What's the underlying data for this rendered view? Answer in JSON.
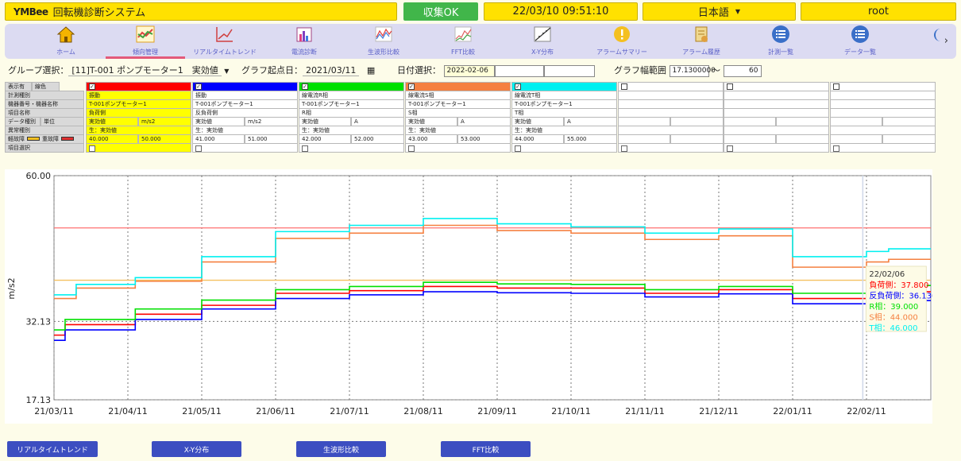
{
  "header": {
    "logo": "YMBee",
    "app_title": "回転機診断システム",
    "status": "収集OK",
    "datetime": "22/03/10 09:51:10",
    "language": "日本語",
    "user": "root"
  },
  "nav": [
    {
      "label": "ホーム",
      "icon": "home-icon"
    },
    {
      "label": "傾向管理",
      "icon": "trend-icon"
    },
    {
      "label": "リアルタイムトレンド",
      "icon": "realtime-trend-icon"
    },
    {
      "label": "電流診断",
      "icon": "current-diagnosis-icon"
    },
    {
      "label": "生波形比較",
      "icon": "raw-wave-icon"
    },
    {
      "label": "FFT比較",
      "icon": "fft-icon"
    },
    {
      "label": "X-Y分布",
      "icon": "xy-icon"
    },
    {
      "label": "アラームサマリー",
      "icon": "alarm-summary-icon"
    },
    {
      "label": "アラーム履歴",
      "icon": "alarm-history-icon"
    },
    {
      "label": "計測一覧",
      "icon": "measure-list-icon"
    },
    {
      "label": "データ一覧",
      "icon": "data-list-icon"
    }
  ],
  "controls": {
    "group_label": "グループ選択：",
    "group_value": "[11]T-001 ポンプモーター1　実効値",
    "start_label": "グラフ起点日：",
    "start_value": "2021/03/11",
    "date_label": "日付選択：",
    "date_value": "2022-02-06",
    "range_label": "グラフ幅範囲",
    "range_min": "17.1300000",
    "range_sep": "～",
    "range_max": "60"
  },
  "grid": {
    "headers": {
      "display": "表示有",
      "color": "線色",
      "meas_type": "計測種別",
      "device": "機器番号・機器名称",
      "item": "項目名称",
      "data_type": "データ種別",
      "unit": "単位",
      "abnormal": "異常種別",
      "minor": "軽故障",
      "major": "重故障",
      "select": "項目選択"
    },
    "columns": [
      {
        "color": "#ff0000",
        "checked": true,
        "type": "振動",
        "device": "T-001ポンプモーター1",
        "item": "負荷側",
        "dtype": "実効値",
        "unit": "m/s2",
        "abn": "生：実効値",
        "minor": "40.000",
        "major": "50.000"
      },
      {
        "color": "#0000ff",
        "checked": true,
        "type": "振動",
        "device": "T-001ポンプモーター1",
        "item": "反負荷側",
        "dtype": "実効値",
        "unit": "m/s2",
        "abn": "生：実効値",
        "minor": "41.000",
        "major": "51.000"
      },
      {
        "color": "#00e000",
        "checked": true,
        "type": "線電流R相",
        "device": "T-001ポンプモーター1",
        "item": "R相",
        "dtype": "実効値",
        "unit": "A",
        "abn": "生：実効値",
        "minor": "42.000",
        "major": "52.000"
      },
      {
        "color": "#f58040",
        "checked": true,
        "type": "線電流S相",
        "device": "T-001ポンプモーター1",
        "item": "S相",
        "dtype": "実効値",
        "unit": "A",
        "abn": "生：実効値",
        "minor": "43.000",
        "major": "53.000"
      },
      {
        "color": "#00f0f0",
        "checked": true,
        "type": "線電流T相",
        "device": "T-001ポンプモーター1",
        "item": "T相",
        "dtype": "実効値",
        "unit": "A",
        "abn": "生：実効値",
        "minor": "44.000",
        "major": "55.000"
      },
      {
        "color": "",
        "checked": false,
        "type": "",
        "device": "",
        "item": "",
        "dtype": "",
        "unit": "",
        "abn": "",
        "minor": "",
        "major": ""
      },
      {
        "color": "",
        "checked": false,
        "type": "",
        "device": "",
        "item": "",
        "dtype": "",
        "unit": "",
        "abn": "",
        "minor": "",
        "major": ""
      },
      {
        "color": "",
        "checked": false,
        "type": "",
        "device": "",
        "item": "",
        "dtype": "",
        "unit": "",
        "abn": "",
        "minor": "",
        "major": ""
      }
    ]
  },
  "chart_data": {
    "type": "line",
    "ylabel": "m/s2",
    "ylim": [
      17.13,
      60.0
    ],
    "yticks": [
      "60.00",
      "32.13",
      "17.13"
    ],
    "x_ticks": [
      "21/03/11",
      "21/04/11",
      "21/05/11",
      "21/06/11",
      "21/07/11",
      "21/08/11",
      "21/09/11",
      "21/10/11",
      "21/11/11",
      "21/12/11",
      "22/01/11",
      "22/02/11"
    ],
    "grid": true,
    "cursor": {
      "date": "22/02/06",
      "entries": [
        {
          "text": "負荷側：37.800",
          "color": "#ff0000"
        },
        {
          "text": "反負荷側：36.130",
          "color": "#0000ff"
        },
        {
          "text": "R相：39.000",
          "color": "#00e000"
        },
        {
          "text": "S相：44.000",
          "color": "#f58040"
        },
        {
          "text": "T相：46.000",
          "color": "#00f0f0"
        }
      ]
    },
    "thresholds": [
      {
        "name": "軽故障",
        "value": 40.0,
        "color": "#f5c060"
      },
      {
        "name": "重故障",
        "value": 50.0,
        "color": "#ff7070"
      }
    ],
    "series": [
      {
        "name": "負荷側",
        "color": "#ff0000",
        "values": [
          [
            0,
            29.5
          ],
          [
            0.15,
            31.5
          ],
          [
            1.1,
            33.5
          ],
          [
            2.0,
            35.2
          ],
          [
            3.0,
            37.5
          ],
          [
            4.0,
            38.0
          ],
          [
            5.0,
            38.8
          ],
          [
            6.0,
            38.5
          ],
          [
            7.0,
            38.5
          ],
          [
            8.0,
            37.5
          ],
          [
            9.0,
            38.2
          ],
          [
            10.0,
            36.5
          ],
          [
            11.0,
            37.0
          ],
          [
            11.3,
            37.8
          ]
        ]
      },
      {
        "name": "反負荷側",
        "color": "#0000ff",
        "values": [
          [
            0,
            28.5
          ],
          [
            0.15,
            30.5
          ],
          [
            1.1,
            32.5
          ],
          [
            2.0,
            34.5
          ],
          [
            3.0,
            36.5
          ],
          [
            4.0,
            37.2
          ],
          [
            5.0,
            37.8
          ],
          [
            6.0,
            37.6
          ],
          [
            7.0,
            37.5
          ],
          [
            8.0,
            36.8
          ],
          [
            9.0,
            37.4
          ],
          [
            10.0,
            35.5
          ],
          [
            11.0,
            36.0
          ],
          [
            11.3,
            36.1
          ]
        ]
      },
      {
        "name": "R相",
        "color": "#00e000",
        "values": [
          [
            0,
            30.5
          ],
          [
            0.15,
            32.5
          ],
          [
            1.1,
            34.5
          ],
          [
            2.0,
            36.2
          ],
          [
            3.0,
            38.2
          ],
          [
            4.0,
            38.8
          ],
          [
            5.0,
            39.6
          ],
          [
            6.0,
            39.3
          ],
          [
            7.0,
            39.2
          ],
          [
            8.0,
            38.2
          ],
          [
            9.0,
            38.8
          ],
          [
            10.0,
            37.5
          ],
          [
            11.0,
            38.5
          ],
          [
            11.3,
            39.0
          ]
        ]
      },
      {
        "name": "S相",
        "color": "#f58040",
        "values": [
          [
            0,
            36.5
          ],
          [
            0.3,
            38.5
          ],
          [
            1.1,
            39.8
          ],
          [
            2.0,
            43.5
          ],
          [
            3.0,
            48.0
          ],
          [
            4.0,
            49.0
          ],
          [
            5.0,
            50.5
          ],
          [
            6.0,
            49.5
          ],
          [
            7.0,
            49.0
          ],
          [
            8.0,
            47.8
          ],
          [
            9.0,
            48.5
          ],
          [
            10.0,
            42.5
          ],
          [
            11.0,
            43.5
          ],
          [
            11.3,
            44.0
          ]
        ]
      },
      {
        "name": "T相",
        "color": "#00f0f0",
        "values": [
          [
            0,
            37.2
          ],
          [
            0.3,
            39.2
          ],
          [
            1.1,
            40.5
          ],
          [
            2.0,
            44.5
          ],
          [
            3.0,
            49.3
          ],
          [
            4.0,
            50.5
          ],
          [
            5.0,
            51.8
          ],
          [
            6.0,
            50.8
          ],
          [
            7.0,
            50.2
          ],
          [
            8.0,
            49.0
          ],
          [
            9.0,
            49.8
          ],
          [
            10.0,
            44.5
          ],
          [
            11.0,
            45.5
          ],
          [
            11.3,
            46.0
          ]
        ]
      }
    ]
  },
  "footer_buttons": [
    "リアルタイムトレンド",
    "X-Y分布",
    "生波形比較",
    "FFT比較"
  ]
}
